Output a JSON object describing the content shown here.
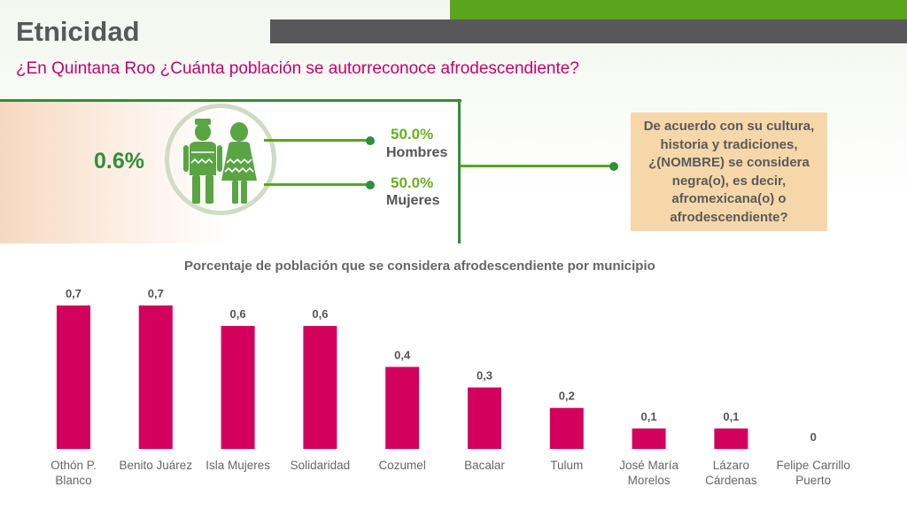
{
  "header": {
    "title": "Etnicidad",
    "question": "¿En Quintana Roo ¿Cuánta población se autorreconoce afrodescendiente?"
  },
  "summary": {
    "total": "0.6%",
    "men_pct": "50.0%",
    "men_label": "Hombres",
    "women_pct": "50.0%",
    "women_label": "Mujeres",
    "question_text": "De acuerdo con su cultura, historia y tradiciones, ¿(NOMBRE) se considera negra(o), es decir, afromexicana(o) o afrodescendiente?"
  },
  "icons": {
    "people": "man-woman-icon"
  },
  "colors": {
    "bar": "#d4005e",
    "accent_green": "#2f8f3a",
    "brand_green": "#5aa51b",
    "question_box": "#f5d7a9"
  },
  "chart_data": {
    "type": "bar",
    "title": "Porcentaje de población que se considera afrodescendiente por municipio",
    "xlabel": "",
    "ylabel": "",
    "categories": [
      [
        "Othón P.",
        "Blanco"
      ],
      [
        "Benito Juárez"
      ],
      [
        "Isla Mujeres"
      ],
      [
        "Solidaridad"
      ],
      [
        "Cozumel"
      ],
      [
        "Bacalar"
      ],
      [
        "Tulum"
      ],
      [
        "José María",
        "Morelos"
      ],
      [
        "Lázaro",
        "Cárdenas"
      ],
      [
        "Felipe Carrillo",
        "Puerto"
      ]
    ],
    "values": [
      0.7,
      0.7,
      0.6,
      0.6,
      0.4,
      0.3,
      0.2,
      0.1,
      0.1,
      0
    ],
    "data_labels": [
      "0,7",
      "0,7",
      "0,6",
      "0,6",
      "0,4",
      "0,3",
      "0,2",
      "0,1",
      "0,1",
      "0"
    ],
    "ylim": [
      0,
      0.7
    ],
    "grid": false,
    "legend": "none"
  }
}
